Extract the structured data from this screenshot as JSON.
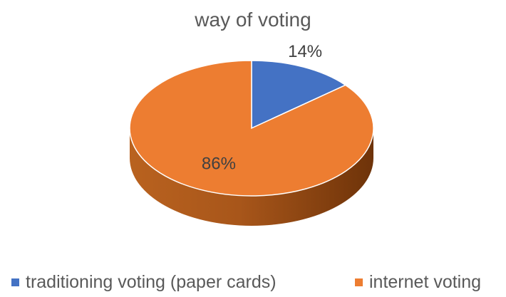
{
  "chart_data": {
    "type": "pie",
    "title": "way of voting",
    "slices": [
      {
        "label": "traditioning voting (paper cards)",
        "value": 14,
        "display": "14%",
        "color": "#4472C4"
      },
      {
        "label": "internet voting",
        "value": 86,
        "display": "86%",
        "color": "#ED7D31"
      }
    ],
    "legend_position": "bottom",
    "style": "3d"
  }
}
